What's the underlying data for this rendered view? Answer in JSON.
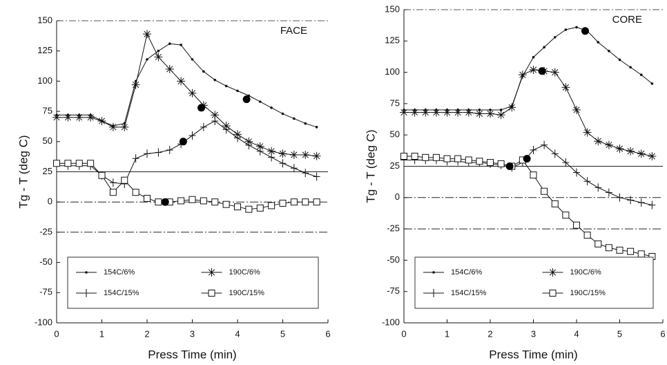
{
  "chart_data": [
    {
      "type": "line",
      "title": "FACE",
      "x_label": "Press Time (min)",
      "y_label": "Tg - T (deg C)",
      "xlim": [
        0,
        6
      ],
      "xticks": [
        0,
        1,
        2,
        3,
        4,
        5,
        6
      ],
      "ylim": [
        -100,
        150
      ],
      "yticks": [
        -100,
        -75,
        -50,
        -25,
        0,
        25,
        50,
        75,
        100,
        125,
        150
      ],
      "x": [
        0,
        0.25,
        0.5,
        0.75,
        1,
        1.25,
        1.5,
        1.75,
        2,
        2.25,
        2.5,
        2.75,
        3,
        3.25,
        3.5,
        3.75,
        4,
        4.25,
        4.5,
        4.75,
        5,
        5.25,
        5.5,
        5.75
      ],
      "series": [
        {
          "name": "154C/6%",
          "color": "#111",
          "marker": "dot",
          "values": [
            72,
            72,
            72,
            72,
            67,
            63,
            65,
            100,
            118,
            125,
            131,
            130,
            118,
            108,
            101,
            96,
            92,
            88,
            83,
            78,
            73,
            69,
            65,
            62
          ]
        },
        {
          "name": "154C/15%",
          "color": "#111",
          "marker": "plus",
          "values": [
            30,
            30,
            30,
            30,
            22,
            16,
            15,
            36,
            40,
            41,
            43,
            48,
            55,
            62,
            67,
            60,
            53,
            47,
            42,
            37,
            32,
            28,
            24,
            21
          ]
        },
        {
          "name": "190C/6%",
          "color": "#111",
          "marker": "star",
          "values": [
            70,
            70,
            70,
            70,
            67,
            62,
            62,
            97,
            139,
            120,
            110,
            100,
            90,
            80,
            72,
            63,
            56,
            50,
            46,
            42,
            40,
            39,
            39,
            38
          ]
        },
        {
          "name": "190C/15%",
          "color": "#111",
          "marker": "square",
          "values": [
            32,
            32,
            32,
            32,
            22,
            8,
            18,
            8,
            3,
            0,
            0,
            1,
            2,
            1,
            0,
            -2,
            -4,
            -6,
            -5,
            -3,
            -1,
            0,
            0,
            0
          ]
        }
      ],
      "highlight_points": {
        "x": [
          2.4,
          2.8,
          3.2,
          4.2
        ],
        "y": [
          0,
          50,
          78,
          85
        ]
      },
      "reference_lines": [
        {
          "value": 25,
          "style": "solid"
        },
        {
          "value": 0,
          "style": "dashdot"
        },
        {
          "value": -25,
          "style": "dashdot"
        }
      ]
    },
    {
      "type": "line",
      "title": "CORE",
      "x_label": "Press Time (min)",
      "y_label": "Tg - T (deg C)",
      "xlim": [
        0,
        6
      ],
      "xticks": [
        0,
        1,
        2,
        3,
        4,
        5,
        6
      ],
      "ylim": [
        -100,
        150
      ],
      "yticks": [
        -100,
        -75,
        -50,
        -25,
        0,
        25,
        50,
        75,
        100,
        125,
        150
      ],
      "x": [
        0,
        0.25,
        0.5,
        0.75,
        1,
        1.25,
        1.5,
        1.75,
        2,
        2.25,
        2.5,
        2.75,
        3,
        3.25,
        3.5,
        3.75,
        4,
        4.25,
        4.5,
        4.75,
        5,
        5.25,
        5.5,
        5.75
      ],
      "series": [
        {
          "name": "154C/6%",
          "color": "#111",
          "marker": "dot",
          "values": [
            70,
            70,
            70,
            70,
            70,
            70,
            70,
            70,
            70,
            70,
            73,
            97,
            112,
            120,
            128,
            134,
            136,
            133,
            124,
            117,
            110,
            104,
            98,
            91
          ]
        },
        {
          "name": "154C/15%",
          "color": "#111",
          "marker": "plus",
          "values": [
            30,
            30,
            30,
            30,
            29,
            29,
            28,
            28,
            27,
            26,
            24,
            28,
            38,
            42,
            35,
            28,
            20,
            13,
            8,
            4,
            0,
            -2,
            -4,
            -6
          ]
        },
        {
          "name": "190C/6%",
          "color": "#111",
          "marker": "star",
          "values": [
            68,
            68,
            68,
            68,
            68,
            68,
            68,
            67,
            67,
            66,
            72,
            98,
            102,
            101,
            100,
            88,
            70,
            52,
            45,
            42,
            39,
            37,
            35,
            33
          ]
        },
        {
          "name": "190C/15%",
          "color": "#111",
          "marker": "square",
          "values": [
            33,
            33,
            32,
            32,
            31,
            31,
            30,
            29,
            28,
            27,
            25,
            30,
            18,
            5,
            -5,
            -14,
            -22,
            -30,
            -37,
            -40,
            -42,
            -43,
            -45,
            -47
          ]
        }
      ],
      "highlight_points": {
        "x": [
          2.45,
          2.85,
          3.2,
          4.2
        ],
        "y": [
          25,
          31,
          101,
          133
        ]
      },
      "reference_lines": [
        {
          "value": 25,
          "style": "solid"
        },
        {
          "value": 0,
          "style": "dashdot"
        },
        {
          "value": -25,
          "style": "dashdot"
        }
      ]
    }
  ]
}
